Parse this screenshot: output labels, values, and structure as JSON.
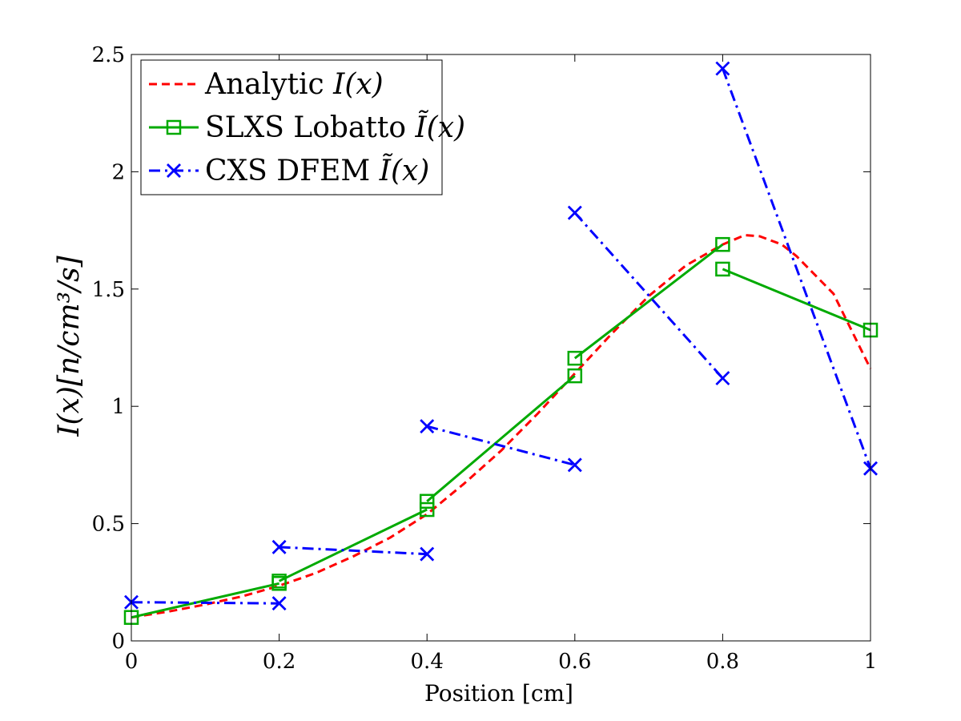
{
  "chart_data": {
    "type": "line",
    "title": "",
    "xlabel": "Position [cm]",
    "ylabel": "I(x)[n/cm³/s]",
    "xlim": [
      0,
      1
    ],
    "ylim": [
      0,
      2.5
    ],
    "xticks": [
      0,
      0.2,
      0.4,
      0.6,
      0.8,
      1
    ],
    "yticks": [
      0,
      0.5,
      1,
      1.5,
      2,
      2.5
    ],
    "xtick_labels": [
      "0",
      "0.2",
      "0.4",
      "0.6",
      "0.8",
      "1"
    ],
    "ytick_labels": [
      "0",
      "0.5",
      "1",
      "1.5",
      "2",
      "2.5"
    ],
    "grid": false,
    "legend_position": "top-left",
    "series": [
      {
        "name": "Analytic I(x)",
        "legend_prefix": "Analytic ",
        "legend_math": "I(x)",
        "color": "#ff0000",
        "line_style": "dashed",
        "marker": "none",
        "segments": [
          [
            [
              0,
              0.1
            ],
            [
              0.05,
              0.125
            ],
            [
              0.1,
              0.155
            ],
            [
              0.15,
              0.19
            ],
            [
              0.2,
              0.235
            ],
            [
              0.25,
              0.29
            ],
            [
              0.3,
              0.36
            ],
            [
              0.35,
              0.44
            ],
            [
              0.4,
              0.54
            ],
            [
              0.45,
              0.67
            ],
            [
              0.5,
              0.81
            ],
            [
              0.55,
              0.97
            ],
            [
              0.6,
              1.14
            ],
            [
              0.65,
              1.31
            ],
            [
              0.7,
              1.47
            ],
            [
              0.75,
              1.6
            ],
            [
              0.8,
              1.69
            ],
            [
              0.83,
              1.73
            ],
            [
              0.85,
              1.725
            ],
            [
              0.88,
              1.69
            ],
            [
              0.9,
              1.64
            ],
            [
              0.95,
              1.48
            ],
            [
              1.0,
              1.16
            ]
          ]
        ]
      },
      {
        "name": "SLXS Lobatto Ĩ(x)",
        "legend_prefix": "SLXS Lobatto ",
        "legend_math": "Ĩ(x)",
        "color": "#00aa00",
        "line_style": "solid",
        "marker": "square",
        "segments": [
          [
            [
              0,
              0.1
            ],
            [
              0.2,
              0.245
            ]
          ],
          [
            [
              0.2,
              0.255
            ],
            [
              0.4,
              0.56
            ]
          ],
          [
            [
              0.4,
              0.595
            ],
            [
              0.6,
              1.13
            ]
          ],
          [
            [
              0.6,
              1.205
            ],
            [
              0.8,
              1.69
            ]
          ],
          [
            [
              0.8,
              1.585
            ],
            [
              1.0,
              1.325
            ]
          ]
        ]
      },
      {
        "name": "CXS DFEM Ĩ(x)",
        "legend_prefix": "CXS DFEM ",
        "legend_math": "Ĩ(x)",
        "color": "#0000ff",
        "line_style": "dash-dot",
        "marker": "x",
        "segments": [
          [
            [
              0,
              0.165
            ],
            [
              0.2,
              0.16
            ]
          ],
          [
            [
              0.2,
              0.4
            ],
            [
              0.4,
              0.37
            ]
          ],
          [
            [
              0.4,
              0.915
            ],
            [
              0.6,
              0.75
            ]
          ],
          [
            [
              0.6,
              1.825
            ],
            [
              0.8,
              1.12
            ]
          ],
          [
            [
              0.8,
              2.44
            ],
            [
              1.0,
              0.735
            ]
          ]
        ]
      }
    ]
  }
}
